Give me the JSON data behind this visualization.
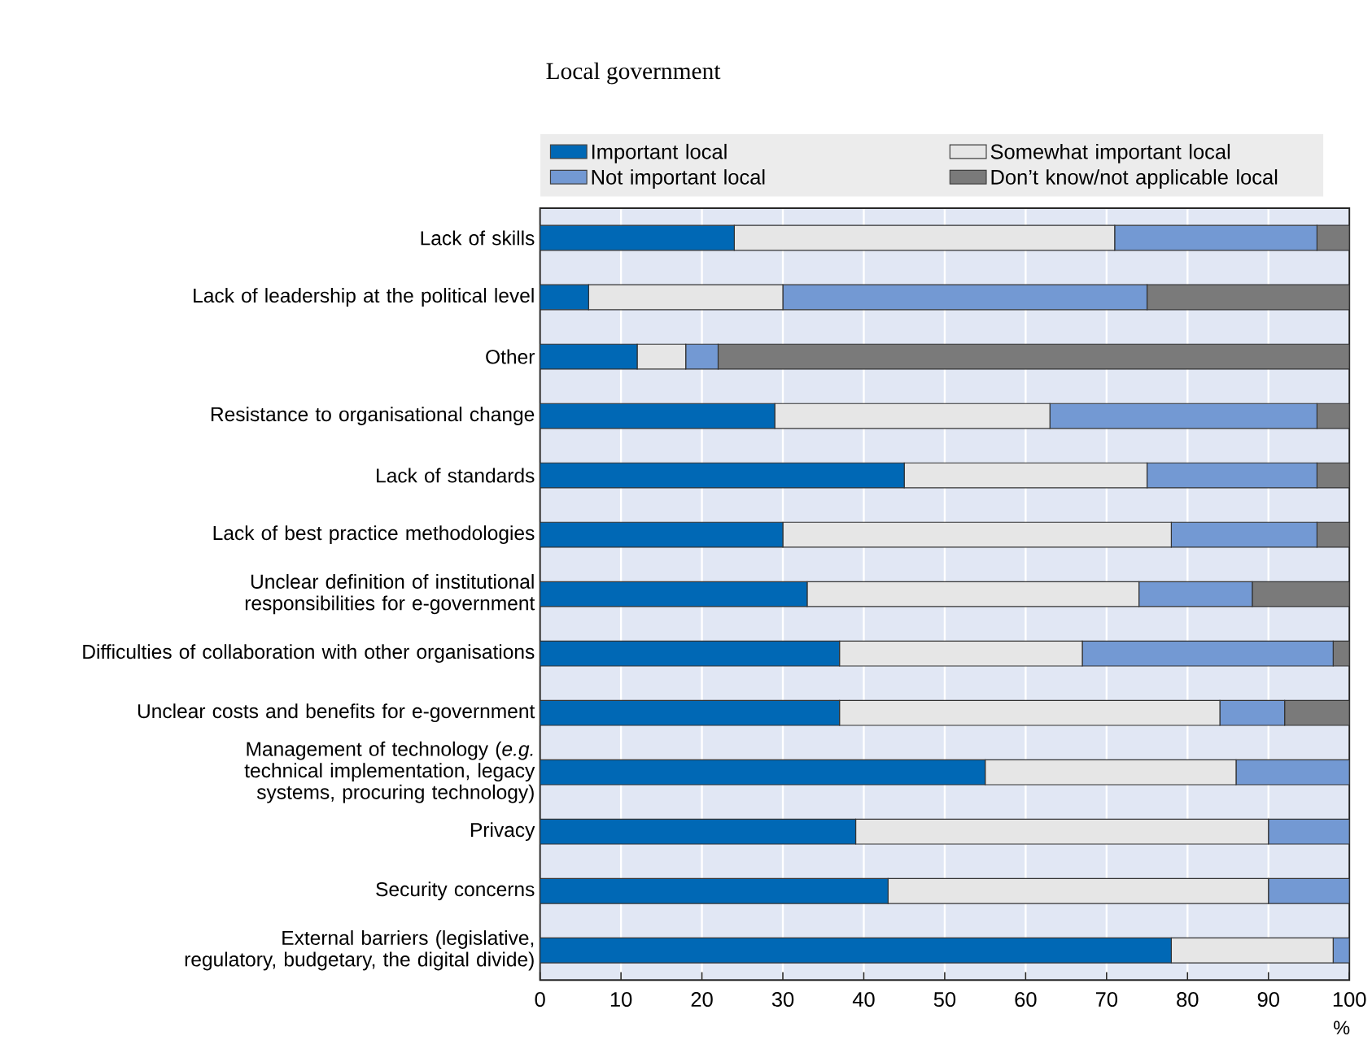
{
  "chart_data": {
    "type": "bar",
    "orientation": "horizontal",
    "stacked": true,
    "title": "Local government",
    "xlabel": "%",
    "categories": [
      "Lack of skills",
      "Lack of leadership at the political level",
      "Other",
      "Resistance to organisational change",
      "Lack of standards",
      "Lack of best practice methodologies",
      "Unclear definition of institutional responsibilities for e-government",
      "Difficulties of collaboration with other organisations",
      "Unclear costs and benefits for e-government",
      "Management of technology (*e.g.* technical implementation, legacy systems, procuring technology)",
      "Privacy",
      "Security concerns",
      "External barriers (legislative, regulatory, budgetary, the digital divide)"
    ],
    "series": [
      {
        "name": "Important local",
        "color": "#0068b5",
        "values": [
          24,
          6,
          12,
          29,
          45,
          30,
          33,
          37,
          37,
          55,
          39,
          43,
          78
        ]
      },
      {
        "name": "Somewhat important local",
        "color": "#e6e6e6",
        "values": [
          47,
          24,
          6,
          34,
          30,
          48,
          41,
          30,
          47,
          31,
          51,
          47,
          20
        ]
      },
      {
        "name": "Not important local",
        "color": "#7399d3",
        "values": [
          25,
          45,
          4,
          33,
          21,
          18,
          14,
          31,
          8,
          14,
          10,
          10,
          2
        ]
      },
      {
        "name": "Don’t know/not applicable local",
        "color": "#7a7a7a",
        "values": [
          4,
          25,
          78,
          4,
          4,
          4,
          12,
          2,
          8,
          null,
          null,
          null,
          null
        ]
      }
    ],
    "xlim": [
      0,
      100
    ],
    "xticks": [
      0,
      10,
      20,
      30,
      40,
      50,
      60,
      70,
      80,
      90,
      100
    ],
    "grid": "x",
    "legend": "top"
  }
}
